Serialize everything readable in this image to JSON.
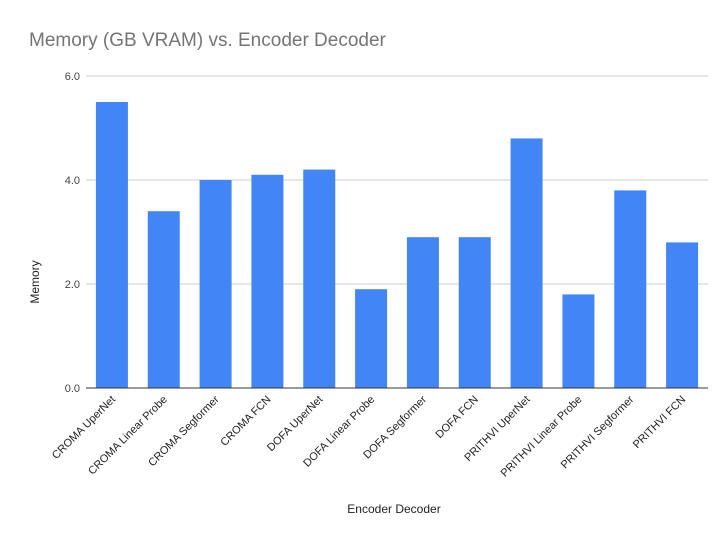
{
  "chart_data": {
    "type": "bar",
    "title": "Memory (GB VRAM) vs. Encoder Decoder",
    "xlabel": "Encoder Decoder",
    "ylabel": "Memory",
    "ylim": [
      0,
      6
    ],
    "yticks": [
      "0.0",
      "2.0",
      "4.0",
      "6.0"
    ],
    "ytick_values": [
      0,
      2,
      4,
      6
    ],
    "grid": true,
    "legend": "none",
    "categories": [
      "CROMA UperNet",
      "CROMA Linear Probe",
      "CROMA Segformer",
      "CROMA FCN",
      "DOFA UperNet",
      "DOFA Linear Probe",
      "DOFA Segformer",
      "DOFA FCN",
      "PRITHVI UperNet",
      "PRITHVI Linear Probe",
      "PRITHVI Segformer",
      "PRITHVI FCN"
    ],
    "values": [
      5.5,
      3.4,
      4.0,
      4.1,
      4.2,
      1.9,
      2.9,
      2.9,
      4.8,
      1.8,
      3.8,
      2.8
    ],
    "colors": {
      "bar": "#4285f4",
      "grid": "#cccccc",
      "axis": "#333333"
    }
  }
}
